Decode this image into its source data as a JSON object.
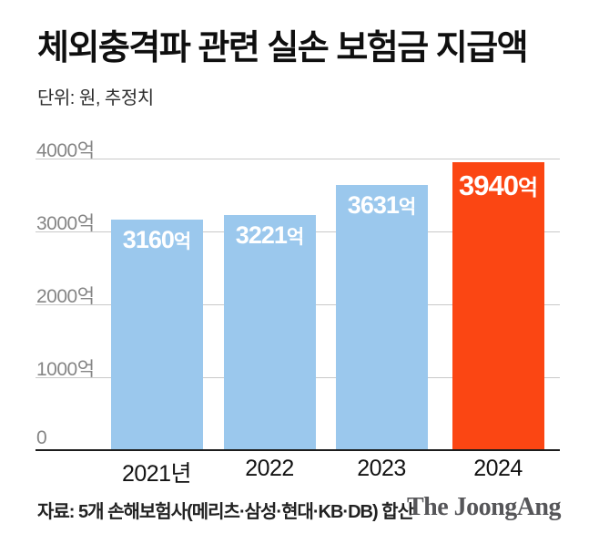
{
  "header": {
    "title": "체외충격파 관련 실손 보험금 지급액",
    "subtitle": "단위: 원, 추정치"
  },
  "chart_data": {
    "type": "bar",
    "title": "체외충격파 관련 실손 보험금 지급액",
    "unit_note": "단위: 원, 추정치",
    "categories": [
      "2021년",
      "2022",
      "2023",
      "2024"
    ],
    "values": [
      3160,
      3221,
      3631,
      3940
    ],
    "bar_labels": [
      "3160억",
      "3221억",
      "3631억",
      "3940억"
    ],
    "value_suffix": "억",
    "highlight_index": 3,
    "ylim": [
      0,
      4000
    ],
    "yticks": [
      {
        "value": 0,
        "label": "0"
      },
      {
        "value": 1000,
        "label": "1000억"
      },
      {
        "value": 2000,
        "label": "2000억"
      },
      {
        "value": 3000,
        "label": "3000억"
      },
      {
        "value": 4000,
        "label": "4000억"
      }
    ],
    "grid": true,
    "legend": "none",
    "colors": {
      "bar": "#9bc8ed",
      "highlight_bar": "#fb4613",
      "gridline": "#c9c9c9",
      "axis_line": "#1c1c1c",
      "tick_label": "#858585",
      "value_label": "#ffffff"
    }
  },
  "footer": {
    "source": "자료: 5개 손해보험사(메리츠·삼성·현대·KB·DB) 합산",
    "logo": "The JoongAng"
  }
}
